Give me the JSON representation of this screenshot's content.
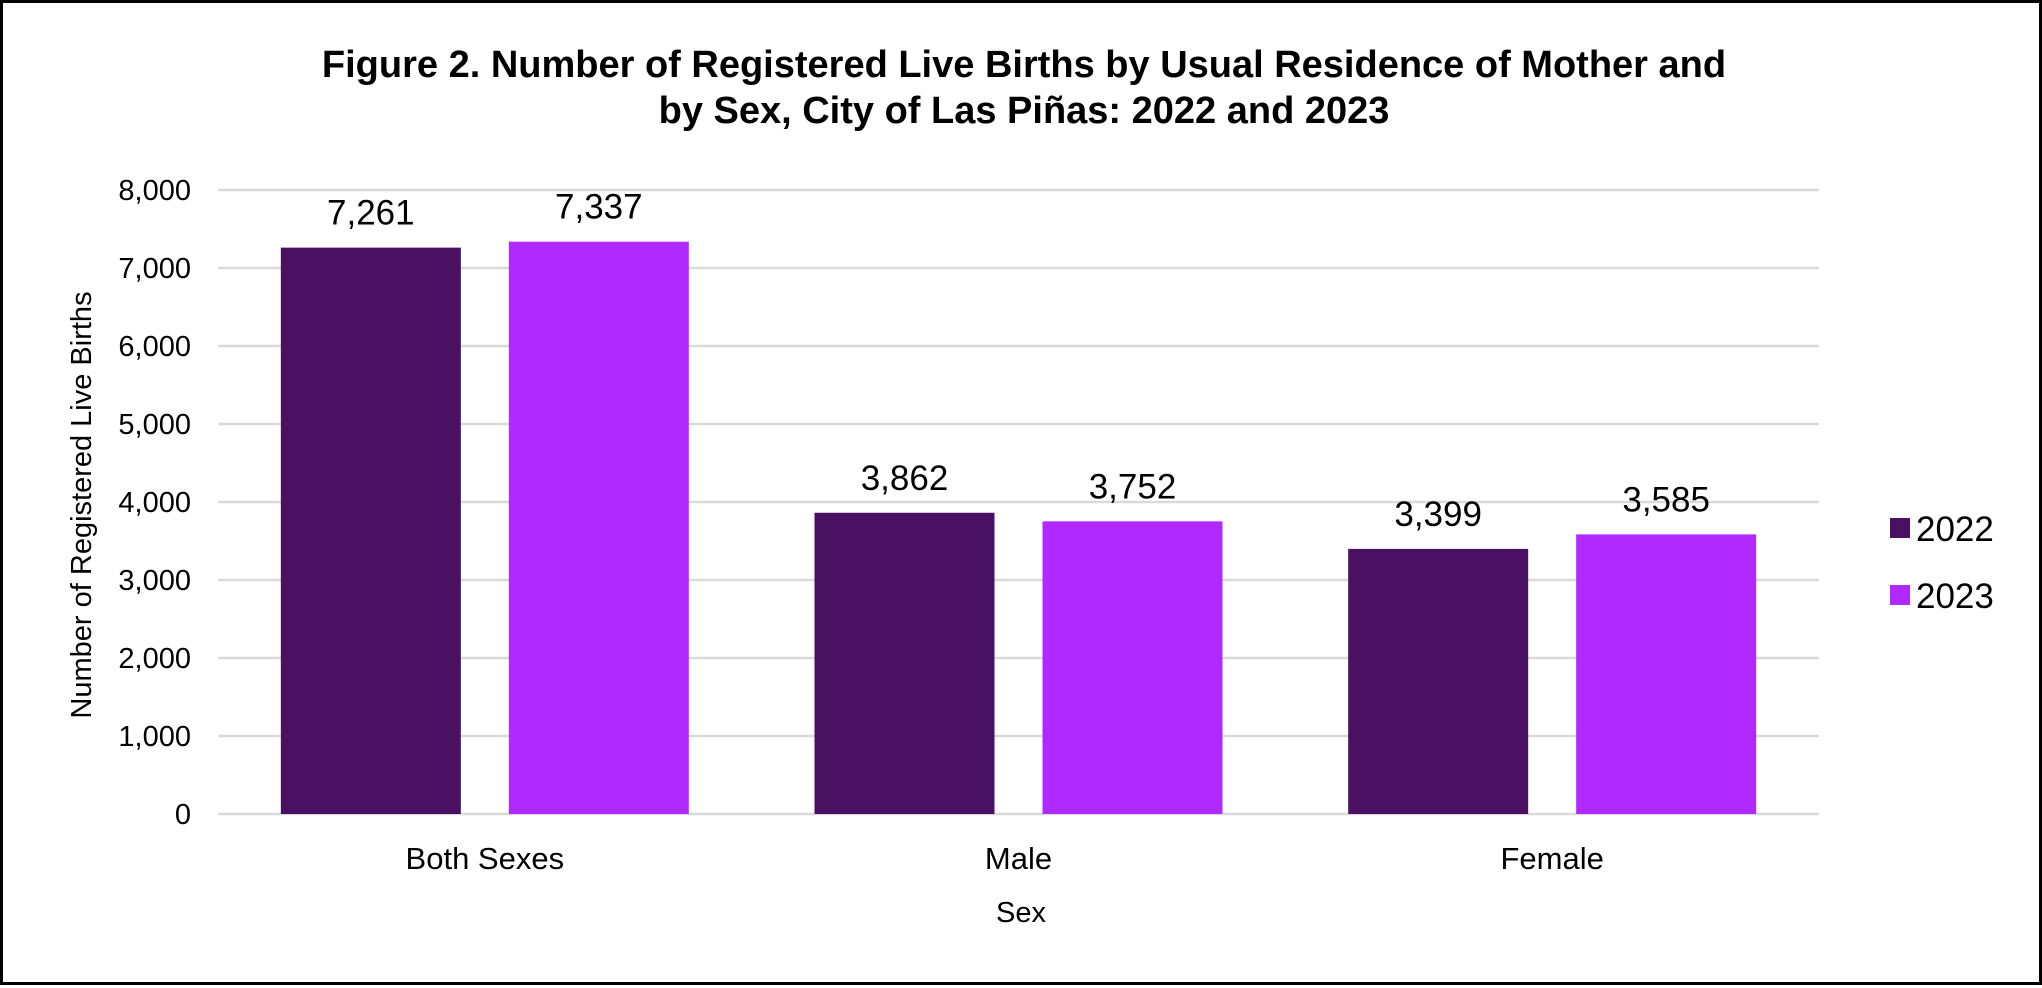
{
  "chart_data": {
    "type": "bar",
    "title_line1": "Figure 2. Number of Registered Live Births by Usual Residence of Mother and",
    "title_line2": "by Sex, City of Las Piñas: 2022 and 2023",
    "xlabel": "Sex",
    "ylabel": "Number of Registered Live Births",
    "categories": [
      "Both Sexes",
      "Male",
      "Female"
    ],
    "series": [
      {
        "name": "2022",
        "color": "#4a1163",
        "values": [
          7261,
          3862,
          3399
        ],
        "labels": [
          "7,261",
          "3,862",
          "3,399"
        ]
      },
      {
        "name": "2023",
        "color": "#b02aff",
        "values": [
          7337,
          3752,
          3585
        ],
        "labels": [
          "7,337",
          "3,752",
          "3,585"
        ]
      }
    ],
    "ylim": [
      0,
      8000
    ],
    "yticks": [
      0,
      1000,
      2000,
      3000,
      4000,
      5000,
      6000,
      7000,
      8000
    ],
    "ytick_labels": [
      "0",
      "1,000",
      "2,000",
      "3,000",
      "4,000",
      "5,000",
      "6,000",
      "7,000",
      "8,000"
    ],
    "grid": true,
    "gridline_color": "#d9d9d9",
    "legend_position": "right"
  }
}
